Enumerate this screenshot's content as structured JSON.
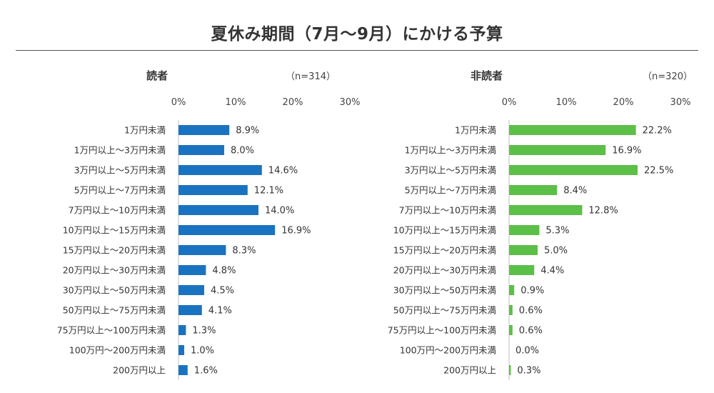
{
  "title": "夏休み期間（7月〜9月）にかける予算",
  "chart_data": [
    {
      "type": "bar",
      "orientation": "horizontal",
      "title": "読者",
      "sample": "（n=314）",
      "color": "#1a73c0",
      "xlim": [
        0,
        30
      ],
      "ticks": [
        "0%",
        "10%",
        "20%",
        "30%"
      ],
      "categories": [
        "1万円未満",
        "1万円以上〜3万円未満",
        "3万円以上〜5万円未満",
        "5万円以上〜7万円未満",
        "7万円以上〜10万円未満",
        "10万円以上〜15万円未満",
        "15万円以上〜20万円未満",
        "20万円以上〜30万円未満",
        "30万円以上〜50万円未満",
        "50万円以上〜75万円未満",
        "75万円以上〜100万円未満",
        "100万円〜200万円未満",
        "200万円以上"
      ],
      "values": [
        8.9,
        8.0,
        14.6,
        12.1,
        14.0,
        16.9,
        8.3,
        4.8,
        4.5,
        4.1,
        1.3,
        1.0,
        1.6
      ],
      "labels": [
        "8.9%",
        "8.0%",
        "14.6%",
        "12.1%",
        "14.0%",
        "16.9%",
        "8.3%",
        "4.8%",
        "4.5%",
        "4.1%",
        "1.3%",
        "1.0%",
        "1.6%"
      ]
    },
    {
      "type": "bar",
      "orientation": "horizontal",
      "title": "非読者",
      "sample": "（n=320）",
      "color": "#5cbf47",
      "xlim": [
        0,
        30
      ],
      "ticks": [
        "0%",
        "10%",
        "20%",
        "30%"
      ],
      "categories": [
        "1万円未満",
        "1万円以上〜3万円未満",
        "3万円以上〜5万円未満",
        "5万円以上〜7万円未満",
        "7万円以上〜10万円未満",
        "10万円以上〜15万円未満",
        "15万円以上〜20万円未満",
        "20万円以上〜30万円未満",
        "30万円以上〜50万円未満",
        "50万円以上〜75万円未満",
        "75万円以上〜100万円未満",
        "100万円〜200万円未満",
        "200万円以上"
      ],
      "values": [
        22.2,
        16.9,
        22.5,
        8.4,
        12.8,
        5.3,
        5.0,
        4.4,
        0.9,
        0.6,
        0.6,
        0.0,
        0.3
      ],
      "labels": [
        "22.2%",
        "16.9%",
        "22.5%",
        "8.4%",
        "12.8%",
        "5.3%",
        "5.0%",
        "4.4%",
        "0.9%",
        "0.6%",
        "0.6%",
        "0.0%",
        "0.3%"
      ]
    }
  ]
}
